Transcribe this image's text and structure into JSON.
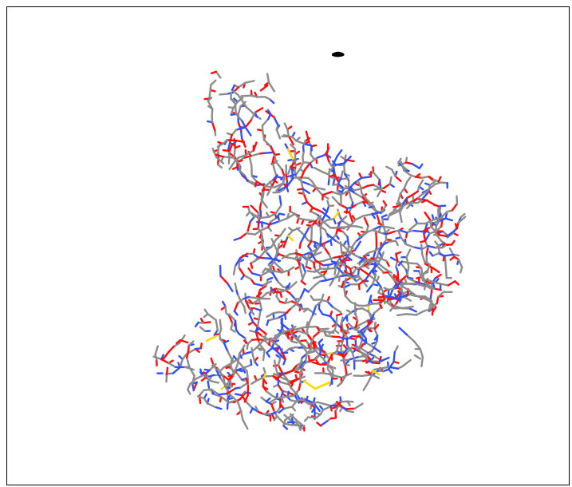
{
  "viewer": {
    "background": "#ffffff",
    "border_color": "#000000"
  },
  "molecule": {
    "style": "sticks",
    "element_colors": {
      "carbon": "#8c8c8c",
      "nitrogen": "#3050f8",
      "oxygen": "#ff0d0d",
      "sulfur": "#ffd700",
      "hydrogen": "#e6e6e6",
      "other": "#000000"
    }
  }
}
